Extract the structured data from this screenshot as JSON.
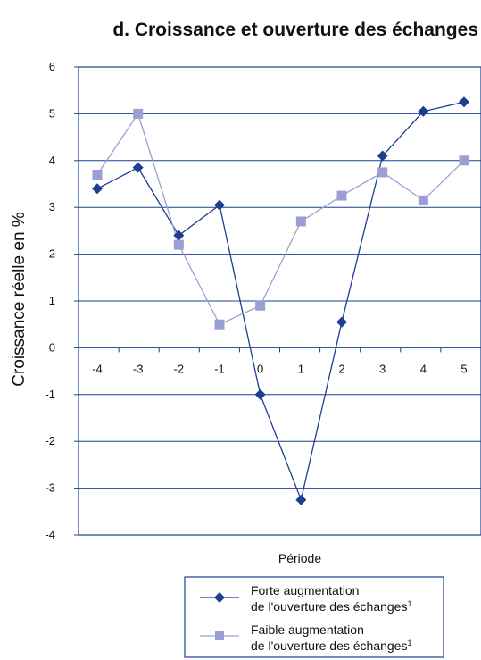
{
  "chart_data": {
    "type": "line",
    "title": "d. Croissance et ouverture des échanges",
    "xlabel": "Période",
    "ylabel": "Croissance réelle en %",
    "x": [
      -4,
      -3,
      -2,
      -1,
      0,
      1,
      2,
      3,
      4,
      5
    ],
    "x_tick_labels": [
      "-4",
      "-3",
      "-2",
      "-1",
      "0",
      "1",
      "2",
      "3",
      "4",
      "5"
    ],
    "y_tick_labels": [
      "6",
      "5",
      "4",
      "3",
      "2",
      "1",
      "0",
      "-1",
      "-2",
      "-3",
      "-4"
    ],
    "ylim": [
      -4,
      6
    ],
    "grid": true,
    "legend_position": "bottom-right",
    "series": [
      {
        "name_line1": "Forte augmentation",
        "name_line2": "de l'ouverture des échanges",
        "footnote": "1",
        "marker": "diamond",
        "color": "#1c3f94",
        "values": [
          3.4,
          3.85,
          2.4,
          3.05,
          -1.0,
          -3.25,
          0.55,
          4.1,
          5.05,
          5.25
        ]
      },
      {
        "name_line1": "Faible augmentation",
        "name_line2": "de l'ouverture des échanges",
        "footnote": "1",
        "marker": "square",
        "color": "#9b9fd3",
        "values": [
          3.7,
          5.0,
          2.2,
          0.5,
          0.9,
          2.7,
          3.25,
          3.75,
          3.15,
          4.0
        ]
      }
    ]
  },
  "colors": {
    "axis": "#1c3f94",
    "grid": "#1c3f94"
  }
}
